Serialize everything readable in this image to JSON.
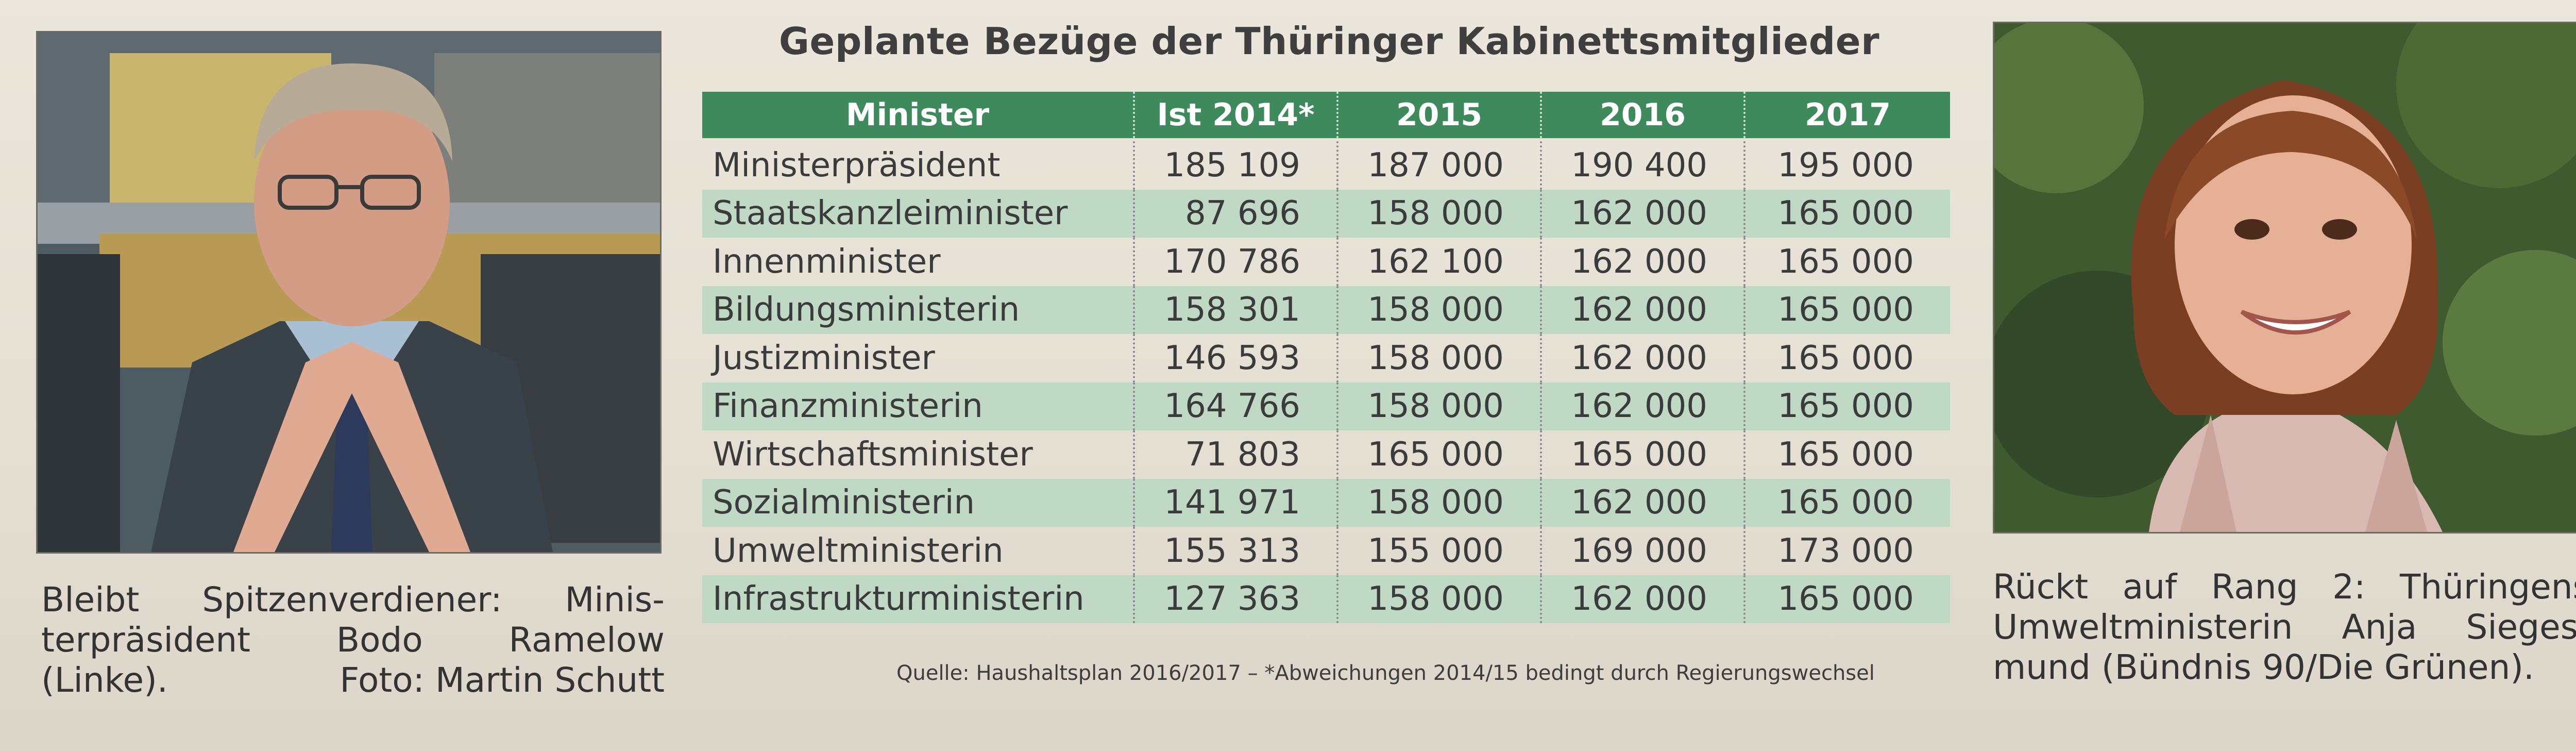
{
  "title": "Geplante Bezüge der Thüringer Kabinettsmitglieder",
  "table": {
    "headers": [
      "Minister",
      "Ist 2014*",
      "2015",
      "2016",
      "2017"
    ],
    "rows": [
      [
        "Ministerpräsident",
        "185 109",
        "187 000",
        "190 400",
        "195 000"
      ],
      [
        "Staatskanzleiminister",
        "87 696",
        "158 000",
        "162 000",
        "165 000"
      ],
      [
        "Innenminister",
        "170 786",
        "162 100",
        "162 000",
        "165 000"
      ],
      [
        "Bildungsministerin",
        "158 301",
        "158 000",
        "162 000",
        "165 000"
      ],
      [
        "Justizminister",
        "146 593",
        "158 000",
        "162 000",
        "165 000"
      ],
      [
        "Finanzministerin",
        "164 766",
        "158 000",
        "162 000",
        "165 000"
      ],
      [
        "Wirtschaftsminister",
        "71 803",
        "165 000",
        "165 000",
        "165 000"
      ],
      [
        "Sozialministerin",
        "141 971",
        "158 000",
        "162 000",
        "165 000"
      ],
      [
        "Umweltministerin",
        "155 313",
        "155 000",
        "169 000",
        "173 000"
      ],
      [
        "Infrastrukturministerin",
        "127 363",
        "158 000",
        "162 000",
        "165 000"
      ]
    ],
    "header_color": "#3f8a5c",
    "stripe_color": "#bfd9c4"
  },
  "source": "Quelle: Haushaltsplan 2016/2017 – *Abweichungen 2014/15 bedingt durch Regierungswechsel",
  "caption_left": {
    "line1a": "Bleibt",
    "line1b": "Spitzenverdiener:",
    "line1c": "Minis-",
    "line2a": "terpräsident",
    "line2b": "Bodo",
    "line2c": "Ramelow",
    "line3a": "(Linke).",
    "line3b": "Foto: Martin Schutt"
  },
  "caption_right": {
    "line1a": "Rückt",
    "line1b": "auf",
    "line1c": "Rang",
    "line1d": "2:",
    "line1e": "Thüringens",
    "line2a": "Umweltministerin",
    "line2b": "Anja",
    "line2c": "Sieges-",
    "line3": "mund (Bündnis 90/Die Grünen)."
  },
  "icons": {
    "photo_left": "portrait-photo-icon",
    "photo_right": "portrait-photo-icon"
  }
}
